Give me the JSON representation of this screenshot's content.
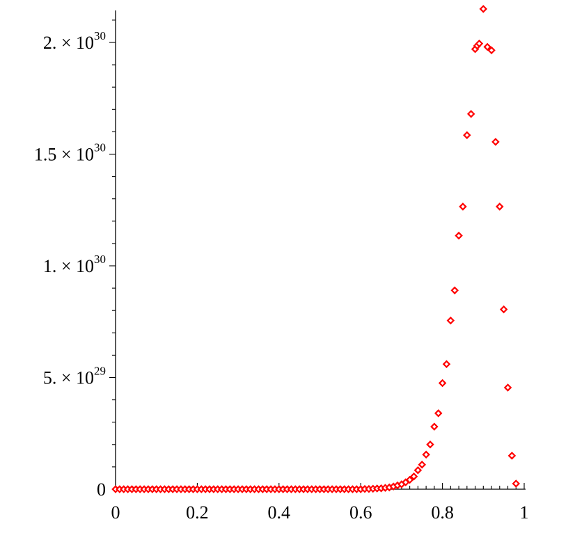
{
  "chart_data": {
    "type": "scatter",
    "title": "",
    "xlabel": "",
    "ylabel": "",
    "xlim": [
      0,
      1
    ],
    "ylim": [
      0,
      2.15e+30
    ],
    "grid": false,
    "legend": "none",
    "marker_color": "#ff0000",
    "x_ticks": [
      {
        "value": 0,
        "label": "0"
      },
      {
        "value": 0.2,
        "label": "0.2"
      },
      {
        "value": 0.4,
        "label": "0.4"
      },
      {
        "value": 0.6,
        "label": "0.6"
      },
      {
        "value": 0.8,
        "label": "0.8"
      },
      {
        "value": 1,
        "label": "1"
      }
    ],
    "y_ticks": [
      {
        "value": 0,
        "label_base": "0",
        "label_exp": ""
      },
      {
        "value": 5e+29,
        "label_base": "5. × 10",
        "label_exp": "29"
      },
      {
        "value": 1e+30,
        "label_base": "1. × 10",
        "label_exp": "30"
      },
      {
        "value": 1.5e+30,
        "label_base": "1.5 × 10",
        "label_exp": "30"
      },
      {
        "value": 2e+30,
        "label_base": "2. × 10",
        "label_exp": "30"
      }
    ],
    "series": [
      {
        "values": [
          [
            0.0,
            0
          ],
          [
            0.01,
            0
          ],
          [
            0.02,
            0
          ],
          [
            0.03,
            0
          ],
          [
            0.04,
            0
          ],
          [
            0.05,
            0
          ],
          [
            0.06,
            0
          ],
          [
            0.07,
            0
          ],
          [
            0.08,
            0
          ],
          [
            0.09,
            0
          ],
          [
            0.1,
            0
          ],
          [
            0.11,
            0
          ],
          [
            0.12,
            0
          ],
          [
            0.13,
            0
          ],
          [
            0.14,
            0
          ],
          [
            0.15,
            0
          ],
          [
            0.16,
            0
          ],
          [
            0.17,
            0
          ],
          [
            0.18,
            0
          ],
          [
            0.19,
            0
          ],
          [
            0.2,
            0
          ],
          [
            0.21,
            0
          ],
          [
            0.22,
            0
          ],
          [
            0.23,
            0
          ],
          [
            0.24,
            0
          ],
          [
            0.25,
            0
          ],
          [
            0.26,
            0
          ],
          [
            0.27,
            0
          ],
          [
            0.28,
            0
          ],
          [
            0.29,
            0
          ],
          [
            0.3,
            0
          ],
          [
            0.31,
            0
          ],
          [
            0.32,
            0
          ],
          [
            0.33,
            0
          ],
          [
            0.34,
            0
          ],
          [
            0.35,
            0
          ],
          [
            0.36,
            0
          ],
          [
            0.37,
            0
          ],
          [
            0.38,
            0
          ],
          [
            0.39,
            0
          ],
          [
            0.4,
            0
          ],
          [
            0.41,
            0
          ],
          [
            0.42,
            0
          ],
          [
            0.43,
            0
          ],
          [
            0.44,
            0
          ],
          [
            0.45,
            0
          ],
          [
            0.46,
            0
          ],
          [
            0.47,
            0
          ],
          [
            0.48,
            0
          ],
          [
            0.49,
            0
          ],
          [
            0.5,
            0
          ],
          [
            0.51,
            0
          ],
          [
            0.52,
            0
          ],
          [
            0.53,
            0
          ],
          [
            0.54,
            0
          ],
          [
            0.55,
            0
          ],
          [
            0.56,
            0
          ],
          [
            0.57,
            0
          ],
          [
            0.58,
            0
          ],
          [
            0.59,
            0
          ],
          [
            0.6,
            0
          ],
          [
            0.61,
            1e+27
          ],
          [
            0.62,
            1e+27
          ],
          [
            0.63,
            2e+27
          ],
          [
            0.64,
            3e+27
          ],
          [
            0.65,
            4e+27
          ],
          [
            0.66,
            6e+27
          ],
          [
            0.67,
            8e+27
          ],
          [
            0.68,
            1.2e+28
          ],
          [
            0.69,
            1.7e+28
          ],
          [
            0.7,
            2.2e+28
          ],
          [
            0.71,
            3.1e+28
          ],
          [
            0.72,
            4.2e+28
          ],
          [
            0.73,
            5.7e+28
          ],
          [
            0.74,
            8.5e+28
          ],
          [
            0.75,
            1.1e+29
          ],
          [
            0.76,
            1.55e+29
          ],
          [
            0.77,
            2e+29
          ],
          [
            0.78,
            2.8e+29
          ],
          [
            0.79,
            3.4e+29
          ],
          [
            0.8,
            4.75e+29
          ],
          [
            0.81,
            5.6e+29
          ],
          [
            0.82,
            7.55e+29
          ],
          [
            0.83,
            8.9e+29
          ],
          [
            0.84,
            1.135e+30
          ],
          [
            0.85,
            1.265e+30
          ],
          [
            0.86,
            1.585e+30
          ],
          [
            0.87,
            1.68e+30
          ],
          [
            0.88,
            1.97e+30
          ],
          [
            0.885,
            1.985e+30
          ],
          [
            0.89,
            1.995e+30
          ],
          [
            0.9,
            2.15e+30
          ],
          [
            0.91,
            1.98e+30
          ],
          [
            0.92,
            1.965e+30
          ],
          [
            0.93,
            1.555e+30
          ],
          [
            0.94,
            1.265e+30
          ],
          [
            0.95,
            8.05e+29
          ],
          [
            0.96,
            4.55e+29
          ],
          [
            0.97,
            1.5e+29
          ],
          [
            0.98,
            2.5e+28
          ]
        ]
      }
    ]
  }
}
